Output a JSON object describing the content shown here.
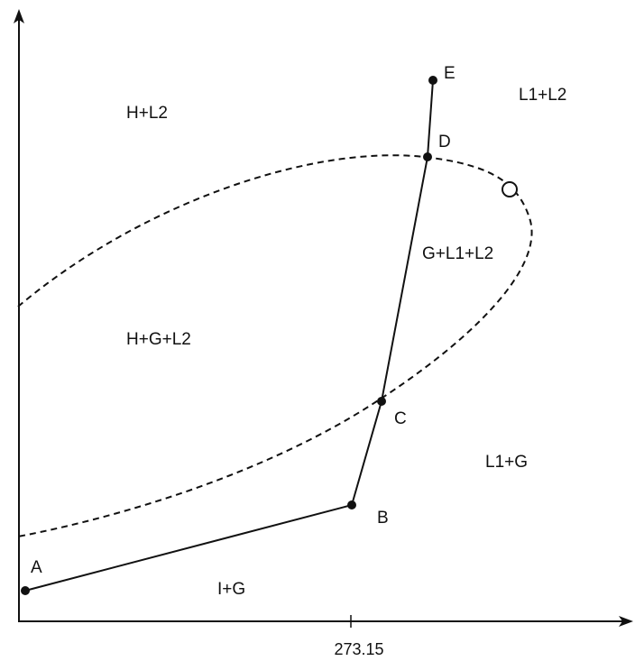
{
  "regions": [
    {
      "id": "h-l2",
      "label": "H+L2"
    },
    {
      "id": "l1-l2",
      "label": "L1+L2"
    },
    {
      "id": "g-l1-l2",
      "label": "G+L1+L2"
    },
    {
      "id": "h-g-l2",
      "label": "H+G+L2"
    },
    {
      "id": "l1-g",
      "label": "L1+G"
    },
    {
      "id": "i-g",
      "label": "I+G"
    }
  ],
  "points": [
    {
      "id": "a",
      "label": "A"
    },
    {
      "id": "b",
      "label": "B"
    },
    {
      "id": "c",
      "label": "C"
    },
    {
      "id": "d",
      "label": "D"
    },
    {
      "id": "e",
      "label": "E"
    }
  ],
  "x_axis": {
    "tick_label": "273.15"
  },
  "special_point": "open-circle",
  "colors": {
    "ink": "#111111",
    "background": "#ffffff"
  }
}
